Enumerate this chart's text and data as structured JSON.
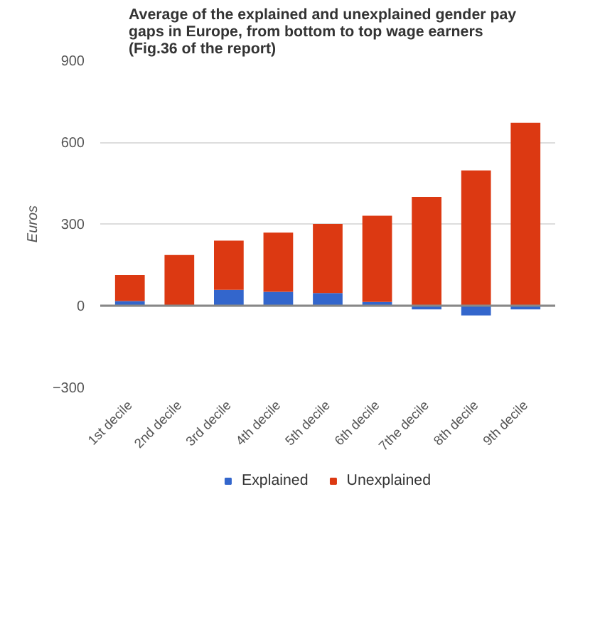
{
  "chart_data": {
    "type": "bar",
    "title": "Average of the explained and unexplained gender pay\ngaps in Europe, from bottom to top wage earners\n(Fig.36 of the report)",
    "ylabel": "Euros",
    "categories": [
      "1st decile",
      "2nd decile",
      "3rd decile",
      "4th decile",
      "5th decile",
      "6th decile",
      "7the decile",
      "8th decile",
      "9th decile"
    ],
    "stacked": true,
    "series": [
      {
        "name": "Explained",
        "color": "#3366cc",
        "values": [
          17,
          null,
          58,
          51,
          46,
          14,
          -14,
          -36,
          -14
        ]
      },
      {
        "name": "Unexplained",
        "color": "#dc3912",
        "values": [
          95,
          186,
          181,
          217,
          254,
          316,
          399,
          496,
          671
        ]
      }
    ],
    "ylim": [
      -300,
      900
    ],
    "yticks": [
      -300,
      0,
      300,
      600,
      900
    ],
    "grid": "y",
    "legend": "bottom"
  }
}
